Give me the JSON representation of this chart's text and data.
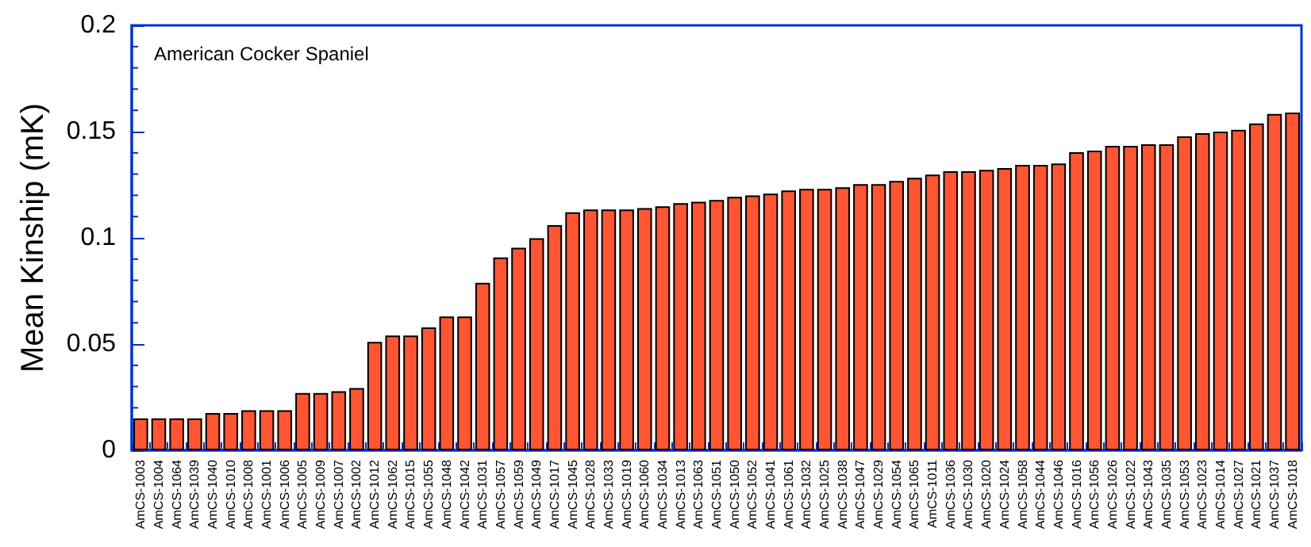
{
  "chart_data": {
    "type": "bar",
    "ylabel": "Mean Kinship (mK)",
    "annotations": [
      "American Cocker Spaniel"
    ],
    "categories": [
      "AmCS-1003",
      "AmCS-1004",
      "AmCS-1064",
      "AmCS-1039",
      "AmCS-1040",
      "AmCS-1010",
      "AmCS-1008",
      "AmCS-1001",
      "AmCS-1006",
      "AmCS-1005",
      "AmCS-1009",
      "AmCS-1007",
      "AmCS-1002",
      "AmCS-1012",
      "AmCS-1062",
      "AmCS-1015",
      "AmCS-1055",
      "AmCS-1048",
      "AmCS-1042",
      "AmCS-1031",
      "AmCS-1057",
      "AmCS-1059",
      "AmCS-1049",
      "AmCS-1017",
      "AmCS-1045",
      "AmCS-1028",
      "AmCS-1033",
      "AmCS-1019",
      "AmCS-1060",
      "AmCS-1034",
      "AmCS-1013",
      "AmCS-1063",
      "AmCS-1051",
      "AmCS-1050",
      "AmCS-1052",
      "AmCS-1041",
      "AmCS-1061",
      "AmCS-1032",
      "AmCS-1025",
      "AmCS-1038",
      "AmCS-1047",
      "AmCS-1029",
      "AmCS-1054",
      "AmCS-1065",
      "AmCS-1011",
      "AmCS-1036",
      "AmCS-1030",
      "AmCS-1020",
      "AmCS-1024",
      "AmCS-1058",
      "AmCS-1044",
      "AmCS-1046",
      "AmCS-1016",
      "AmCS-1056",
      "AmCS-1026",
      "AmCS-1022",
      "AmCS-1043",
      "AmCS-1035",
      "AmCS-1053",
      "AmCS-1023",
      "AmCS-1014",
      "AmCS-1027",
      "AmCS-1021",
      "AmCS-1037",
      "AmCS-1018"
    ],
    "values": [
      0.015,
      0.015,
      0.015,
      0.015,
      0.0175,
      0.0175,
      0.0188,
      0.0188,
      0.0188,
      0.027,
      0.027,
      0.0278,
      0.0293,
      0.051,
      0.054,
      0.054,
      0.0578,
      0.063,
      0.063,
      0.0788,
      0.0908,
      0.0953,
      0.0998,
      0.106,
      0.112,
      0.1133,
      0.1133,
      0.1133,
      0.114,
      0.1148,
      0.1163,
      0.117,
      0.1178,
      0.1193,
      0.12,
      0.1208,
      0.1223,
      0.123,
      0.123,
      0.1238,
      0.1253,
      0.1253,
      0.1268,
      0.1283,
      0.1298,
      0.1313,
      0.1313,
      0.132,
      0.1328,
      0.1343,
      0.1343,
      0.135,
      0.1403,
      0.141,
      0.1433,
      0.1433,
      0.144,
      0.144,
      0.1478,
      0.1493,
      0.15,
      0.1508,
      0.1538,
      0.1583,
      0.159
    ],
    "color": "#ff5533",
    "ylim": [
      0,
      0.2
    ],
    "yticks": [
      0,
      0.05,
      0.1,
      0.15,
      0.2
    ],
    "grid": false
  }
}
